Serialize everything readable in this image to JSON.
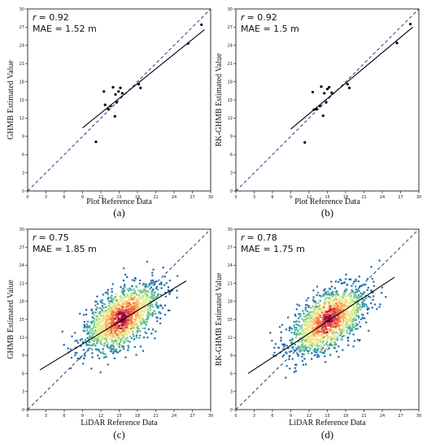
{
  "chart_data": [
    {
      "type": "scatter",
      "panel_label": "(a)",
      "xlabel": "Plot Reference Data",
      "ylabel": "GHMB Estimated Value",
      "r_label": "r",
      "r_value": "= 0.92",
      "mae_label": "MAE = 1.52 m",
      "xlim": [
        0,
        30
      ],
      "ylim": [
        0,
        30
      ],
      "xticks": [
        "0",
        "3",
        "6",
        "9",
        "12",
        "15",
        "18",
        "21",
        "24",
        "27",
        "30"
      ],
      "yticks": [
        "0",
        "3",
        "6",
        "9",
        "12",
        "15",
        "18",
        "21",
        "24",
        "27",
        "30"
      ],
      "density": false,
      "points": [
        [
          11.2,
          8.1
        ],
        [
          12.5,
          16.4
        ],
        [
          12.7,
          14.2
        ],
        [
          13.2,
          13.5
        ],
        [
          13.6,
          14.0
        ],
        [
          14.0,
          17.1
        ],
        [
          14.3,
          12.3
        ],
        [
          14.4,
          15.9
        ],
        [
          14.6,
          14.6
        ],
        [
          14.9,
          16.4
        ],
        [
          15.2,
          17.0
        ],
        [
          15.5,
          16.1
        ],
        [
          18.2,
          17.6
        ],
        [
          18.5,
          17.0
        ],
        [
          26.3,
          24.3
        ],
        [
          28.5,
          27.4
        ]
      ],
      "fit": [
        [
          9.0,
          10.4
        ],
        [
          29.0,
          26.6
        ]
      ]
    },
    {
      "type": "scatter",
      "panel_label": "(b)",
      "xlabel": "Plot Reference Data",
      "ylabel": "RK-GHMB Estimated Value",
      "r_label": "r",
      "r_value": "= 0.92",
      "mae_label": "MAE = 1.5 m",
      "xlim": [
        0,
        30
      ],
      "ylim": [
        0,
        30
      ],
      "xticks": [
        "0",
        "3",
        "6",
        "9",
        "12",
        "15",
        "18",
        "21",
        "24",
        "27",
        "30"
      ],
      "yticks": [
        "0",
        "3",
        "6",
        "9",
        "12",
        "15",
        "18",
        "21",
        "24",
        "27",
        "30"
      ],
      "density": false,
      "points": [
        [
          11.3,
          8.0
        ],
        [
          12.6,
          16.3
        ],
        [
          12.8,
          13.4
        ],
        [
          13.2,
          13.5
        ],
        [
          13.8,
          14.0
        ],
        [
          14.0,
          17.2
        ],
        [
          14.3,
          12.4
        ],
        [
          14.5,
          16.1
        ],
        [
          14.8,
          14.6
        ],
        [
          15.0,
          16.8
        ],
        [
          15.3,
          17.1
        ],
        [
          15.7,
          16.2
        ],
        [
          18.3,
          17.6
        ],
        [
          18.6,
          17.0
        ],
        [
          26.4,
          24.4
        ],
        [
          28.6,
          27.5
        ]
      ],
      "fit": [
        [
          9.0,
          10.2
        ],
        [
          29.0,
          27.0
        ]
      ]
    },
    {
      "type": "scatter",
      "panel_label": "(c)",
      "xlabel": "LiDAR Reference Data",
      "ylabel": "GHMB Estimated Value",
      "r_label": "r",
      "r_value": "= 0.75",
      "mae_label": "MAE = 1.85 m",
      "xlim": [
        0,
        30
      ],
      "ylim": [
        0,
        30
      ],
      "xticks": [
        "0",
        "3",
        "6",
        "9",
        "12",
        "15",
        "18",
        "21",
        "24",
        "27",
        "30"
      ],
      "yticks": [
        "0",
        "3",
        "6",
        "9",
        "12",
        "15",
        "18",
        "21",
        "24",
        "27",
        "30"
      ],
      "density": true,
      "density_center": [
        15.5,
        15.3
      ],
      "seed": 7,
      "fit": [
        [
          2.0,
          6.6
        ],
        [
          26.0,
          21.4
        ]
      ]
    },
    {
      "type": "scatter",
      "panel_label": "(d)",
      "xlabel": "LiDAR Reference Data",
      "ylabel": "RK-GHMB Estimated Value",
      "r_label": "r",
      "r_value": "= 0.78",
      "mae_label": "MAE = 1.75 m",
      "xlim": [
        0,
        30
      ],
      "ylim": [
        0,
        30
      ],
      "xticks": [
        "0",
        "3",
        "6",
        "9",
        "12",
        "15",
        "18",
        "21",
        "24",
        "27",
        "30"
      ],
      "yticks": [
        "0",
        "3",
        "6",
        "9",
        "12",
        "15",
        "18",
        "21",
        "24",
        "27",
        "30"
      ],
      "density": true,
      "density_center": [
        15.2,
        14.9
      ],
      "seed": 19,
      "fit": [
        [
          2.0,
          6.0
        ],
        [
          26.0,
          22.0
        ]
      ]
    }
  ],
  "colors": {
    "identity_line": "#1f3a93",
    "fit_line": "#000000",
    "sparse_point": "#000000",
    "density_ramp": [
      "#2a6fb0",
      "#39a0a6",
      "#7cc98f",
      "#d9ef8b",
      "#fee08b",
      "#fdae61",
      "#f46d43",
      "#d53e4f",
      "#9e0142"
    ]
  }
}
